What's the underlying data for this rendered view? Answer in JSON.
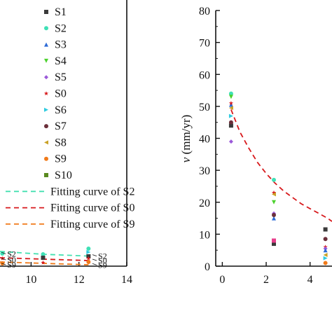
{
  "chart_data": [
    {
      "type": "scatter",
      "panel": "left (cropped)",
      "xlim": [
        8.7,
        14
      ],
      "xticks": [
        "10",
        "12",
        "14"
      ],
      "legend": [
        {
          "label": "S1",
          "kind": "marker",
          "marker": "square",
          "color": "#3a3a3a"
        },
        {
          "label": "S2",
          "kind": "marker",
          "marker": "circle",
          "color": "#3fe0b6"
        },
        {
          "label": "S3",
          "kind": "marker",
          "marker": "triangle-up",
          "color": "#2d6bd6"
        },
        {
          "label": "S4",
          "kind": "marker",
          "marker": "triangle-down",
          "color": "#4cd12e"
        },
        {
          "label": "S5",
          "kind": "marker",
          "marker": "diamond",
          "color": "#9b59d9"
        },
        {
          "label": "S0",
          "kind": "marker",
          "marker": "star",
          "color": "#d7191c"
        },
        {
          "label": "S6",
          "kind": "marker",
          "marker": "triangle-right",
          "color": "#2fcbe0"
        },
        {
          "label": "S7",
          "kind": "marker",
          "marker": "circle",
          "color": "#6b2f3a"
        },
        {
          "label": "S8",
          "kind": "marker",
          "marker": "triangle-left",
          "color": "#c9a227"
        },
        {
          "label": "S9",
          "kind": "marker",
          "marker": "circle",
          "color": "#f07a1a"
        },
        {
          "label": "S10",
          "kind": "marker",
          "marker": "square",
          "color": "#5a8a1f"
        },
        {
          "label": "Fitting curve of S2",
          "kind": "line",
          "color": "#44e0b0"
        },
        {
          "label": "Fitting curve of S0",
          "kind": "line",
          "color": "#d7191c"
        },
        {
          "label": "Fitting curve of S9",
          "kind": "line",
          "color": "#f07a1a"
        }
      ],
      "annotations": [
        {
          "text": "S2",
          "x": 9.0,
          "y": 0.88
        },
        {
          "text": "S0",
          "x": 9.0,
          "y": 0.45
        },
        {
          "text": "S9",
          "x": 9.0,
          "y": 0.1
        },
        {
          "text": "S2",
          "x": 12.8,
          "y": 0.72
        },
        {
          "text": "S0",
          "x": 12.8,
          "y": 0.4
        },
        {
          "text": "S9",
          "x": 12.8,
          "y": 0.08
        }
      ],
      "points": [
        {
          "x": 8.8,
          "y": 0.9,
          "color": "#3fe0b6",
          "marker": "circle"
        },
        {
          "x": 8.8,
          "y": 0.55,
          "color": "#d7191c",
          "marker": "star"
        },
        {
          "x": 8.8,
          "y": 0.2,
          "color": "#f07a1a",
          "marker": "circle"
        },
        {
          "x": 10.5,
          "y": 0.85,
          "color": "#3fe0b6",
          "marker": "circle"
        },
        {
          "x": 10.5,
          "y": 0.6,
          "color": "#3a3a3a",
          "marker": "square"
        },
        {
          "x": 10.5,
          "y": 0.25,
          "color": "#d7191c",
          "marker": "star"
        },
        {
          "x": 12.4,
          "y": 1.25,
          "color": "#3fe0b6",
          "marker": "circle"
        },
        {
          "x": 12.4,
          "y": 1.0,
          "color": "#2fcbe0",
          "marker": "triangle-right"
        },
        {
          "x": 12.4,
          "y": 0.7,
          "color": "#3a3a3a",
          "marker": "square"
        },
        {
          "x": 12.4,
          "y": 0.55,
          "color": "#d7191c",
          "marker": "star"
        },
        {
          "x": 12.4,
          "y": 0.3,
          "color": "#f07a1a",
          "marker": "circle"
        }
      ],
      "fits": [
        {
          "color": "#44e0b0",
          "x": [
            8.7,
            10.5,
            12.4
          ],
          "y": [
            1.05,
            0.85,
            0.72
          ]
        },
        {
          "color": "#d7191c",
          "x": [
            8.7,
            10.5,
            12.4
          ],
          "y": [
            0.6,
            0.5,
            0.4
          ]
        },
        {
          "color": "#f07a1a",
          "x": [
            8.7,
            10.5,
            12.4
          ],
          "y": [
            0.3,
            0.2,
            0.1
          ]
        }
      ],
      "ylim": [
        0,
        2
      ]
    },
    {
      "type": "scatter",
      "panel": "right (cropped)",
      "ylabel_var": "v",
      "ylabel_unit": " (mm/yr)",
      "xlim": [
        -0.3,
        5.0
      ],
      "ylim": [
        0,
        80
      ],
      "xticks": [
        0,
        2,
        4
      ],
      "yticks": [
        0,
        10,
        20,
        30,
        40,
        50,
        60,
        70,
        80
      ],
      "points": [
        {
          "x": 0.4,
          "y": 44,
          "color": "#3a3a3a",
          "marker": "square"
        },
        {
          "x": 0.4,
          "y": 54,
          "color": "#3fe0b6",
          "marker": "circle"
        },
        {
          "x": 0.4,
          "y": 50.5,
          "color": "#2d6bd6",
          "marker": "triangle-up"
        },
        {
          "x": 0.4,
          "y": 53,
          "color": "#4cd12e",
          "marker": "triangle-down"
        },
        {
          "x": 0.4,
          "y": 39,
          "color": "#9b59d9",
          "marker": "diamond"
        },
        {
          "x": 0.4,
          "y": 51,
          "color": "#d7191c",
          "marker": "star"
        },
        {
          "x": 0.4,
          "y": 47,
          "color": "#2fcbe0",
          "marker": "triangle-right"
        },
        {
          "x": 0.4,
          "y": 45,
          "color": "#6b2f3a",
          "marker": "circle"
        },
        {
          "x": 0.4,
          "y": 49.5,
          "color": "#c9a227",
          "marker": "triangle-left"
        },
        {
          "x": 2.35,
          "y": 7,
          "color": "#3a3a3a",
          "marker": "square"
        },
        {
          "x": 2.35,
          "y": 27,
          "color": "#3fe0b6",
          "marker": "circle"
        },
        {
          "x": 2.35,
          "y": 15,
          "color": "#2d6bd6",
          "marker": "triangle-up"
        },
        {
          "x": 2.35,
          "y": 20,
          "color": "#4cd12e",
          "marker": "triangle-down"
        },
        {
          "x": 2.35,
          "y": 16.5,
          "color": "#9b59d9",
          "marker": "diamond"
        },
        {
          "x": 2.35,
          "y": 23,
          "color": "#d7191c",
          "marker": "star"
        },
        {
          "x": 2.35,
          "y": 16,
          "color": "#6b2f3a",
          "marker": "circle"
        },
        {
          "x": 2.35,
          "y": 22.5,
          "color": "#c9a227",
          "marker": "triangle-left"
        },
        {
          "x": 2.35,
          "y": 8,
          "color": "#e83e8c",
          "marker": "square"
        },
        {
          "x": 4.7,
          "y": 11.5,
          "color": "#3a3a3a",
          "marker": "square"
        },
        {
          "x": 4.7,
          "y": 8.5,
          "color": "#6b2f3a",
          "marker": "circle"
        },
        {
          "x": 4.7,
          "y": 6,
          "color": "#d7191c",
          "marker": "star"
        },
        {
          "x": 4.7,
          "y": 5.5,
          "color": "#9b59d9",
          "marker": "diamond"
        },
        {
          "x": 4.7,
          "y": 5,
          "color": "#2d6bd6",
          "marker": "triangle-up"
        },
        {
          "x": 4.7,
          "y": 3.5,
          "color": "#c9a227",
          "marker": "triangle-left"
        },
        {
          "x": 4.7,
          "y": 2.5,
          "color": "#2fcbe0",
          "marker": "triangle-right"
        },
        {
          "x": 4.7,
          "y": 1,
          "color": "#f07a1a",
          "marker": "circle"
        }
      ],
      "fit_S0": {
        "color": "#d7191c",
        "x": [
          0.4,
          0.8,
          1.2,
          1.6,
          2.0,
          2.4,
          2.8,
          3.2,
          3.6,
          4.0,
          4.4,
          4.8,
          5.0
        ],
        "y": [
          49,
          42,
          37,
          32.5,
          29,
          26,
          23.5,
          21.5,
          19.5,
          18,
          16.5,
          15,
          14
        ]
      }
    }
  ]
}
